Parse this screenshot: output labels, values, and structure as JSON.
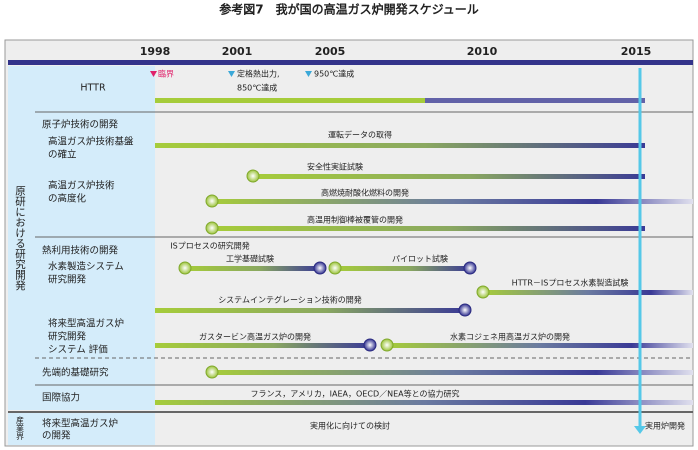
{
  "title": "参考図7　我が国の高温ガス炉開発スケジュール",
  "years": [
    "1998",
    "2001",
    "2005",
    "2010",
    "2015"
  ],
  "sections": [
    "原研における研究開発",
    "産業界"
  ],
  "httr": {
    "label": "HTTR",
    "milestones": [
      "臨界",
      "定格熱出力,",
      "850℃達成",
      "950℃達成"
    ]
  },
  "rows": [
    [
      "原子炉技術の開発"
    ],
    [
      "高温ガス炉技術基盤",
      "の確立"
    ],
    [
      "高温ガス炉技術",
      "の高度化"
    ],
    [
      "熱利用技術の開発"
    ],
    [
      "水素製造システム",
      "研究開発"
    ],
    [
      "将来型高温ガス炉",
      "研究開発",
      "システム 評価"
    ],
    [
      "先端的基礎研究"
    ],
    [
      "国際協力"
    ],
    [
      "将来型高温ガス炉",
      "の開発"
    ]
  ],
  "tasks": [
    "運転データの取得",
    "安全性実証試験",
    "高燃焼耐酸化燃料の開発",
    "高温用制御棒被覆管の開発",
    "ISプロセスの研究開発",
    "工学基礎試験",
    "パイロット試験",
    "HTTR－ISプロセス水素製造試験",
    "システムインテグレーション技術の開発",
    "ガスタービン高温ガス炉の開発",
    "水素コジェネ用高温ガス炉の開発",
    "フランス，アメリカ，IAEA，OECD／NEA等との協力研究",
    "実用化に向けての検討",
    "実用炉開発"
  ]
}
